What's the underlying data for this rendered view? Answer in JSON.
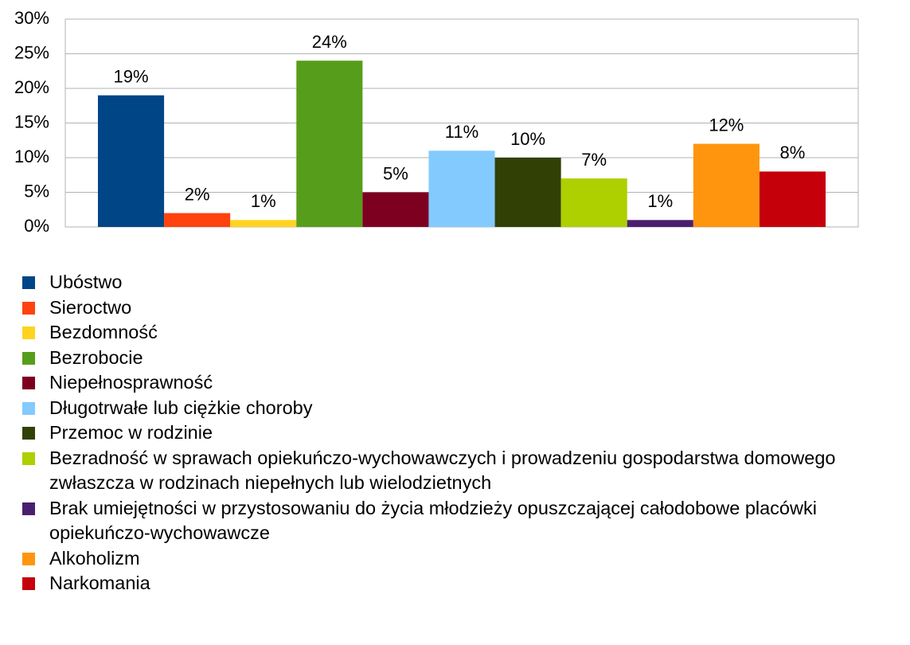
{
  "chart_data": {
    "type": "bar",
    "categories": [
      ""
    ],
    "series": [
      {
        "name": "Ubóstwo",
        "color": "#004586",
        "values": [
          19
        ],
        "value_labels": [
          "19%"
        ]
      },
      {
        "name": "Sieroctwo",
        "color": "#ff420e",
        "values": [
          2
        ],
        "value_labels": [
          "2%"
        ]
      },
      {
        "name": "Bezdomność",
        "color": "#ffd320",
        "values": [
          1
        ],
        "value_labels": [
          "1%"
        ]
      },
      {
        "name": "Bezrobocie",
        "color": "#579d1c",
        "values": [
          24
        ],
        "value_labels": [
          "24%"
        ]
      },
      {
        "name": "Niepełnosprawność",
        "color": "#7e0021",
        "values": [
          5
        ],
        "value_labels": [
          "5%"
        ]
      },
      {
        "name": "Długotrwałe lub ciężkie choroby",
        "color": "#83caff",
        "values": [
          11
        ],
        "value_labels": [
          "11%"
        ]
      },
      {
        "name": "Przemoc w rodzinie",
        "color": "#314004",
        "values": [
          10
        ],
        "value_labels": [
          "10%"
        ]
      },
      {
        "name": "Bezradność w sprawach opiekuńczo-wychowawczych i prowadzeniu gospodarstwa domowego zwłaszcza w rodzinach niepełnych lub wielodzietnych",
        "color": "#aecf00",
        "values": [
          7
        ],
        "value_labels": [
          "7%"
        ]
      },
      {
        "name": "Brak umiejętności w przystosowaniu do życia młodzieży opuszczającej całodobowe placówki opiekuńczo-wychowawcze",
        "color": "#4b1f6f",
        "values": [
          1
        ],
        "value_labels": [
          "1%"
        ]
      },
      {
        "name": "Alkoholizm",
        "color": "#ff950e",
        "values": [
          12
        ],
        "value_labels": [
          "12%"
        ]
      },
      {
        "name": "Narkomania",
        "color": "#c5000b",
        "values": [
          8
        ],
        "value_labels": [
          "8%"
        ]
      }
    ],
    "ylim": [
      0,
      30
    ],
    "yticks": [
      {
        "value": 0,
        "label": "0%"
      },
      {
        "value": 5,
        "label": "5%"
      },
      {
        "value": 10,
        "label": "10%"
      },
      {
        "value": 15,
        "label": "15%"
      },
      {
        "value": 20,
        "label": "20%"
      },
      {
        "value": 25,
        "label": "25%"
      },
      {
        "value": 30,
        "label": "30%"
      }
    ],
    "grid": true,
    "legend": "bottom"
  }
}
